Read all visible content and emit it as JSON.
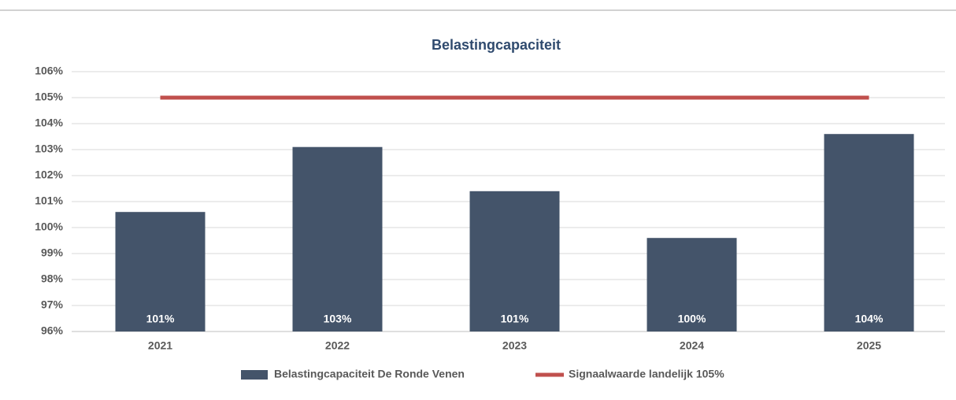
{
  "chart_data": {
    "type": "bar",
    "title": "Belastingcapaciteit",
    "categories": [
      "2021",
      "2022",
      "2023",
      "2024",
      "2025"
    ],
    "series": [
      {
        "name": "Belastingcapaciteit De Ronde Venen",
        "type": "bar",
        "color": "#44546a",
        "values": [
          100.6,
          103.1,
          101.4,
          99.6,
          103.6
        ],
        "value_labels": [
          "101%",
          "103%",
          "101%",
          "100%",
          "104%"
        ]
      },
      {
        "name": "Signaalwaarde landelijk 105%",
        "type": "line",
        "color": "#c0504d",
        "values": [
          105,
          105,
          105,
          105,
          105
        ]
      }
    ],
    "ylim": [
      96,
      106
    ],
    "yticks": [
      {
        "value": 96,
        "label": "96%"
      },
      {
        "value": 97,
        "label": "97%"
      },
      {
        "value": 98,
        "label": "98%"
      },
      {
        "value": 99,
        "label": "99%"
      },
      {
        "value": 100,
        "label": "100%"
      },
      {
        "value": 101,
        "label": "101%"
      },
      {
        "value": 102,
        "label": "102%"
      },
      {
        "value": 103,
        "label": "103%"
      },
      {
        "value": 104,
        "label": "104%"
      },
      {
        "value": 105,
        "label": "105%"
      },
      {
        "value": 106,
        "label": "106%"
      }
    ],
    "grid": true,
    "legend": "bottom"
  }
}
